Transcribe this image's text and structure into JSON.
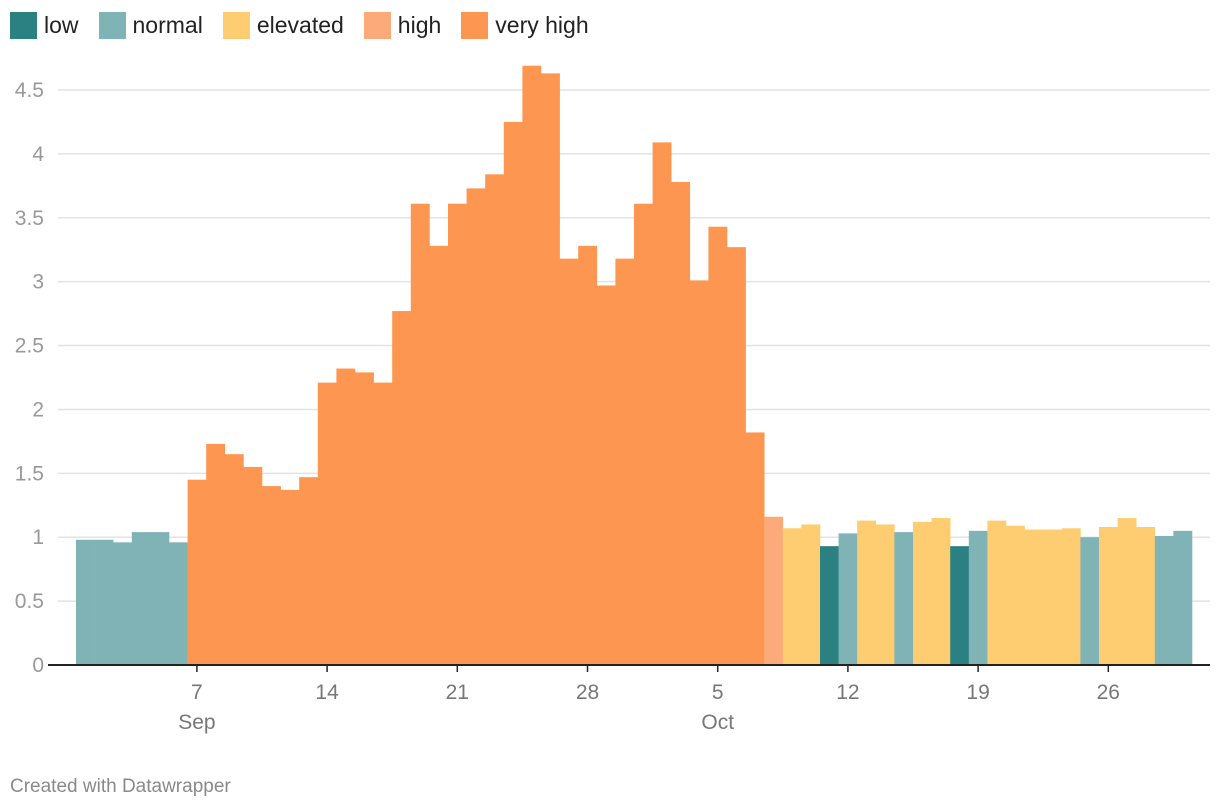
{
  "legend": [
    {
      "key": "low",
      "label": "low",
      "color": "#2b8082"
    },
    {
      "key": "normal",
      "label": "normal",
      "color": "#80b3b6"
    },
    {
      "key": "elevated",
      "label": "elevated",
      "color": "#fecd72"
    },
    {
      "key": "high",
      "label": "high",
      "color": "#fcaa7a"
    },
    {
      "key": "very_high",
      "label": "very high",
      "color": "#fd9650"
    }
  ],
  "credit": "Created with Datawrapper",
  "chart_data": {
    "type": "bar",
    "ylim": [
      0,
      4.7
    ],
    "y_ticks": [
      0,
      0.5,
      1,
      1.5,
      2,
      2.5,
      3,
      3.5,
      4,
      4.5
    ],
    "y_tick_labels": [
      "0",
      "0.5",
      "1",
      "1.5",
      "2",
      "2.5",
      "3",
      "3.5",
      "4",
      "4.5"
    ],
    "x_axis": {
      "first_day": "Sep 1",
      "days": 60
    },
    "x_ticks": [
      {
        "day": 7,
        "label": "7",
        "month": "Sep"
      },
      {
        "day": 14,
        "label": "14"
      },
      {
        "day": 21,
        "label": "21"
      },
      {
        "day": 28,
        "label": "28"
      },
      {
        "day": 35,
        "label": "5",
        "month": "Oct"
      },
      {
        "day": 42,
        "label": "12"
      },
      {
        "day": 49,
        "label": "19"
      },
      {
        "day": 56,
        "label": "26"
      }
    ],
    "categories_note": "daily values, day 1 = Sep 1",
    "values": [
      0.98,
      0.98,
      0.96,
      1.04,
      1.04,
      0.96,
      1.45,
      1.73,
      1.65,
      1.55,
      1.4,
      1.37,
      1.47,
      2.21,
      2.32,
      2.29,
      2.21,
      2.77,
      3.61,
      3.28,
      3.61,
      3.73,
      3.84,
      4.25,
      4.69,
      4.63,
      3.18,
      3.28,
      2.97,
      3.18,
      3.61,
      4.09,
      3.78,
      3.01,
      3.43,
      3.27,
      1.82,
      1.16,
      1.07,
      1.1,
      0.93,
      1.03,
      1.13,
      1.1,
      1.04,
      1.12,
      1.15,
      0.93,
      1.05,
      1.13,
      1.09,
      1.06,
      1.06,
      1.07,
      1.0,
      1.08,
      1.15,
      1.08,
      1.01,
      1.05
    ],
    "levels": [
      "normal",
      "normal",
      "normal",
      "normal",
      "normal",
      "normal",
      "very_high",
      "very_high",
      "very_high",
      "very_high",
      "very_high",
      "very_high",
      "very_high",
      "very_high",
      "very_high",
      "very_high",
      "very_high",
      "very_high",
      "very_high",
      "very_high",
      "very_high",
      "very_high",
      "very_high",
      "very_high",
      "very_high",
      "very_high",
      "very_high",
      "very_high",
      "very_high",
      "very_high",
      "very_high",
      "very_high",
      "very_high",
      "very_high",
      "very_high",
      "very_high",
      "very_high",
      "high",
      "elevated",
      "elevated",
      "low",
      "normal",
      "elevated",
      "elevated",
      "normal",
      "elevated",
      "elevated",
      "low",
      "normal",
      "elevated",
      "elevated",
      "elevated",
      "elevated",
      "elevated",
      "normal",
      "elevated",
      "elevated",
      "elevated",
      "normal",
      "normal"
    ]
  }
}
